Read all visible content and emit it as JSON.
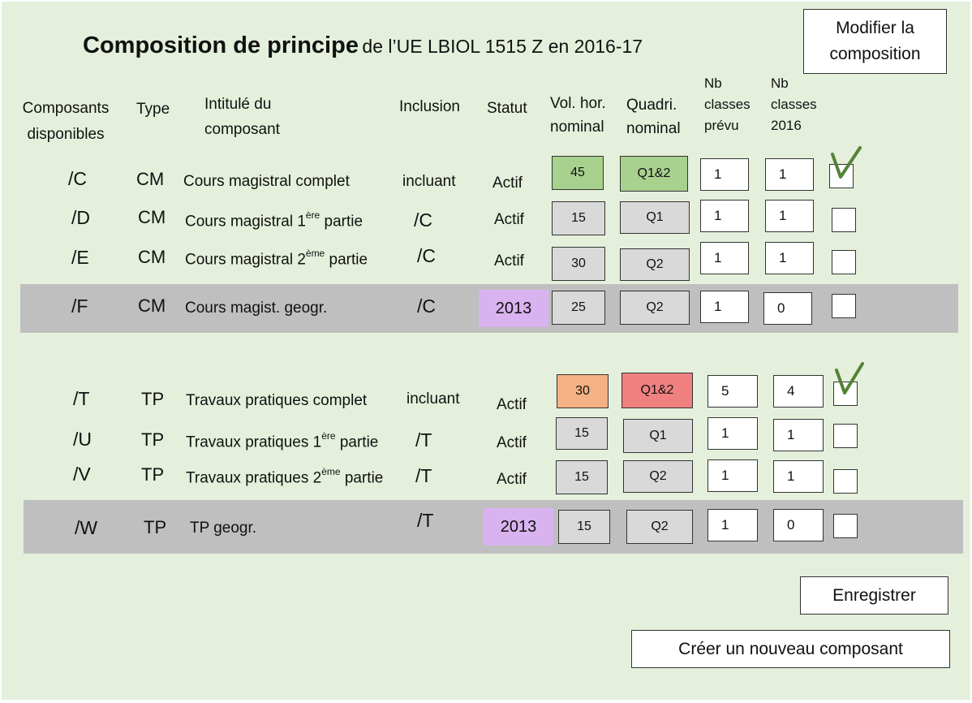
{
  "title": {
    "main": "Composition de principe",
    "rest": "de l’UE LBIOL 1515 Z en 2016-17"
  },
  "buttons": {
    "modify_line1": "Modifier la",
    "modify_line2": "composition",
    "save": "Enregistrer",
    "create": "Créer un nouveau composant"
  },
  "headers": {
    "components_l1": "Composants",
    "components_l2": "disponibles",
    "type": "Type",
    "label_l1": "Intitulé du",
    "label_l2": "composant",
    "inclusion": "Inclusion",
    "statut": "Statut",
    "vol_l1": "Vol. hor.",
    "vol_l2": "nominal",
    "quadri_l1": "Quadri.",
    "quadri_l2": "nominal",
    "nb_prevu_l1": "Nb",
    "nb_prevu_l2": "classes",
    "nb_prevu_l3": "prévu",
    "nb_2016_l1": "Nb",
    "nb_2016_l2": "classes",
    "nb_2016_l3": "2016"
  },
  "rows": [
    {
      "code": "/C",
      "type": "CM",
      "label": "Cours magistral complet",
      "label_sup": "",
      "label_after": "",
      "inclusion": "incluant",
      "statut": "Actif",
      "vol": "45",
      "vol_color": "#a9d18e",
      "quadri": "Q1&2",
      "quadri_color": "#a9d18e",
      "nb_prevu": "1",
      "nb_2016": "1",
      "checked": true
    },
    {
      "code": "/D",
      "type": "CM",
      "label": "Cours magistral 1",
      "label_sup": "ère",
      "label_after": " partie",
      "inclusion": "/C",
      "statut": "Actif",
      "vol": "15",
      "vol_color": "#d9d9d9",
      "quadri": "Q1",
      "quadri_color": "#d9d9d9",
      "nb_prevu": "1",
      "nb_2016": "1",
      "checked": false
    },
    {
      "code": "/E",
      "type": "CM",
      "label": "Cours magistral 2",
      "label_sup": "ème",
      "label_after": " partie",
      "inclusion": "/C",
      "statut": "Actif",
      "vol": "30",
      "vol_color": "#d9d9d9",
      "quadri": "Q2",
      "quadri_color": "#d9d9d9",
      "nb_prevu": "1",
      "nb_2016": "1",
      "checked": false
    },
    {
      "code": "/F",
      "type": "CM",
      "label": "Cours magist. geogr.",
      "label_sup": "",
      "label_after": "",
      "inclusion": "/C",
      "statut": "2013",
      "vol": "25",
      "vol_color": "#d9d9d9",
      "quadri": "Q2",
      "quadri_color": "#d9d9d9",
      "nb_prevu": "1",
      "nb_2016": "0",
      "checked": false
    },
    {
      "code": "/T",
      "type": "TP",
      "label": "Travaux pratiques complet",
      "label_sup": "",
      "label_after": "",
      "inclusion": "incluant",
      "statut": "Actif",
      "vol": "30",
      "vol_color": "#f4b183",
      "quadri": "Q1&2",
      "quadri_color": "#f08080",
      "nb_prevu": "5",
      "nb_2016": "4",
      "checked": true
    },
    {
      "code": "/U",
      "type": "TP",
      "label": "Travaux pratiques 1",
      "label_sup": "ère",
      "label_after": " partie",
      "inclusion": "/T",
      "statut": "Actif",
      "vol": "15",
      "vol_color": "#d9d9d9",
      "quadri": "Q1",
      "quadri_color": "#d9d9d9",
      "nb_prevu": "1",
      "nb_2016": "1",
      "checked": false
    },
    {
      "code": "/V",
      "type": "TP",
      "label": "Travaux pratiques 2",
      "label_sup": "ème",
      "label_after": " partie",
      "inclusion": "/T",
      "statut": "Actif",
      "vol": "15",
      "vol_color": "#d9d9d9",
      "quadri": "Q2",
      "quadri_color": "#d9d9d9",
      "nb_prevu": "1",
      "nb_2016": "1",
      "checked": false
    },
    {
      "code": "/W",
      "type": "TP",
      "label": "TP geogr.",
      "label_sup": "",
      "label_after": "",
      "inclusion": "/T",
      "statut": "2013",
      "vol": "15",
      "vol_color": "#d9d9d9",
      "quadri": "Q2",
      "quadri_color": "#d9d9d9",
      "nb_prevu": "1",
      "nb_2016": "0",
      "checked": false
    }
  ],
  "colors": {
    "background": "#e4f0db",
    "inactive_band": "#bfbfbf",
    "year_badge": "#d9b3ef",
    "check_mark": "#548235"
  }
}
